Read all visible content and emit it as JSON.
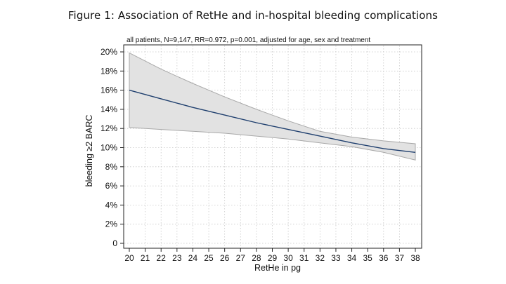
{
  "figure": {
    "title": "Figure 1: Association of RetHe and in-hospital bleeding complications"
  },
  "chart_data": {
    "type": "line",
    "subtitle": "all patients, N=9,147, RR=0.972, p=0.001, adjusted for age, sex and treatment",
    "xlabel": "RetHe in pg",
    "ylabel": "bleeding ≥2 BARC",
    "xlim": [
      20,
      38
    ],
    "ylim": [
      0,
      20
    ],
    "x_ticks": [
      "20",
      "21",
      "22",
      "23",
      "24",
      "25",
      "26",
      "27",
      "28",
      "29",
      "30",
      "31",
      "32",
      "33",
      "34",
      "35",
      "36",
      "37",
      "38"
    ],
    "y_ticks": [
      "0",
      "2%",
      "4%",
      "6%",
      "8%",
      "10%",
      "12%",
      "14%",
      "16%",
      "18%",
      "20%"
    ],
    "grid": true,
    "x": [
      20,
      22,
      24,
      26,
      28,
      30,
      32,
      34,
      36,
      38
    ],
    "series": [
      {
        "values": [
          16.0,
          15.1,
          14.2,
          13.4,
          12.6,
          11.9,
          11.2,
          10.5,
          9.9,
          9.5
        ]
      }
    ],
    "ci_upper": [
      19.9,
      18.2,
      16.7,
      15.3,
      14.0,
      12.8,
      11.7,
      11.1,
      10.7,
      10.4
    ],
    "ci_lower": [
      12.1,
      11.9,
      11.7,
      11.5,
      11.2,
      10.9,
      10.5,
      10.1,
      9.5,
      8.7
    ],
    "colors": {
      "line": "#1f3f6e",
      "band_fill": "#e2e2e2",
      "band_edge": "#a8a8a8",
      "grid": "#c8c8c8"
    }
  }
}
